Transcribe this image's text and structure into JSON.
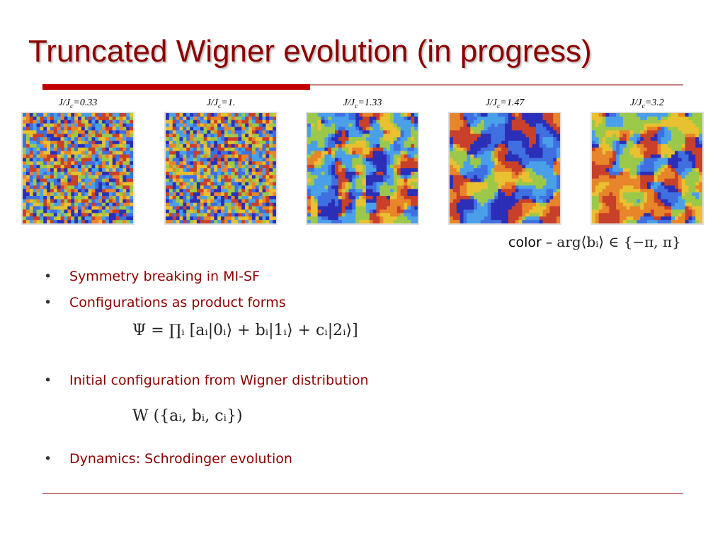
{
  "header": {
    "title": "Truncated Wigner evolution (in progress)"
  },
  "panels": [
    {
      "prefix": "J/J",
      "sub": "c",
      "suffix": "=0.33"
    },
    {
      "prefix": "J/J",
      "sub": "c",
      "suffix": "=1."
    },
    {
      "prefix": "J/J",
      "sub": "c",
      "suffix": "=1.33"
    },
    {
      "prefix": "J/J",
      "sub": "c",
      "suffix": "=1.47"
    },
    {
      "prefix": "J/J",
      "sub": "c",
      "suffix": "=3.2"
    }
  ],
  "caption": {
    "label": "color –",
    "formula": "arg⟨bᵢ⟩ ∈ {−π, π}"
  },
  "bullets": [
    {
      "text": "Symmetry breaking in MI-SF"
    },
    {
      "text": "Configurations as product forms",
      "formula": "Ψ = ∏ᵢ [aᵢ|0ᵢ⟩ + bᵢ|1ᵢ⟩ + cᵢ|2ᵢ⟩]"
    },
    {
      "text": "Initial configuration from Wigner distribution",
      "formula": "W ({aᵢ, bᵢ, cᵢ})"
    },
    {
      "text": "Dynamics: Schrodinger evolution"
    }
  ]
}
